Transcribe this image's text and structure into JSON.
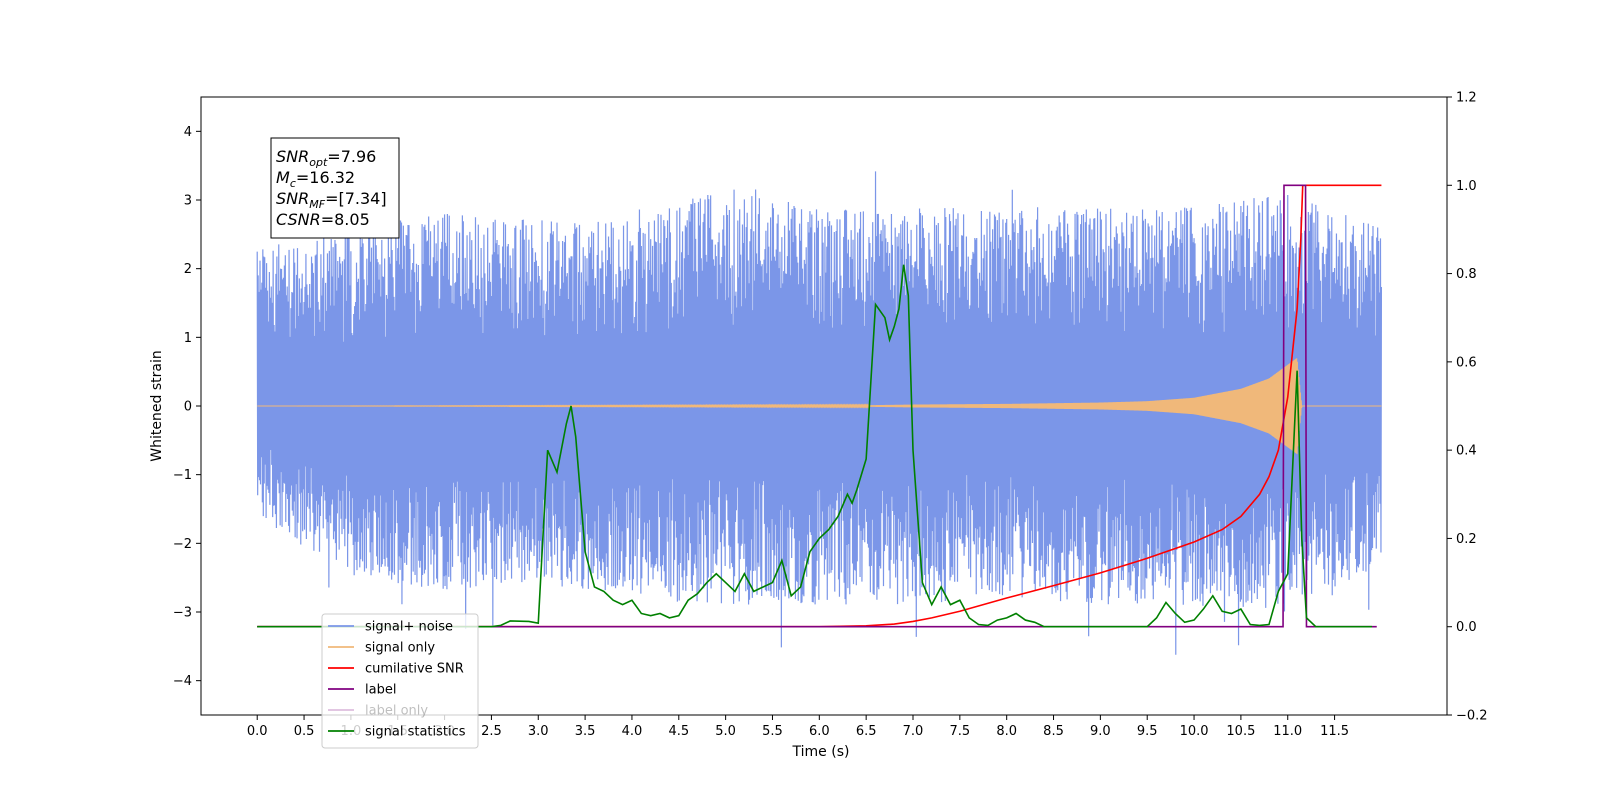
{
  "chart_data": {
    "type": "line",
    "xlabel": "Time (s)",
    "ylabel_left": "Whitened strain",
    "ylabel_right": "",
    "xlim": [
      -0.6,
      12.7
    ],
    "ylim_left": [
      -4.5,
      4.5
    ],
    "ylim_right": [
      -0.2,
      1.2
    ],
    "x_ticks": [
      0.0,
      0.5,
      1.0,
      1.5,
      2.0,
      2.5,
      3.0,
      3.5,
      4.0,
      4.5,
      5.0,
      5.5,
      6.0,
      6.5,
      7.0,
      7.5,
      8.0,
      8.5,
      9.0,
      9.5,
      10.0,
      10.5,
      11.0,
      11.5
    ],
    "x_tick_labels": [
      "0.0",
      "0.5",
      "1.0",
      "1.5",
      "2.0",
      "2.5",
      "3.0",
      "3.5",
      "4.0",
      "4.5",
      "5.0",
      "5.5",
      "6.0",
      "6.5",
      "7.0",
      "7.5",
      "8.0",
      "8.5",
      "9.0",
      "9.5",
      "10.0",
      "10.5",
      "11.0",
      "11.5"
    ],
    "y_left_ticks": [
      -4,
      -3,
      -2,
      -1,
      0,
      1,
      2,
      3,
      4
    ],
    "y_left_tick_labels": [
      "−4",
      "−3",
      "−2",
      "−1",
      "0",
      "1",
      "2",
      "3",
      "4"
    ],
    "y_right_ticks": [
      -0.2,
      0.0,
      0.2,
      0.4,
      0.6,
      0.8,
      1.0,
      1.2
    ],
    "y_right_tick_labels": [
      "−0.2",
      "0.0",
      "0.2",
      "0.4",
      "0.6",
      "0.8",
      "1.0",
      "1.2"
    ],
    "grid": false,
    "legend_position": "bottom-left",
    "annotation": {
      "lines": [
        {
          "sym": "SNR",
          "sub": "opt",
          "val": "=7.96"
        },
        {
          "sym": "M",
          "sub": "c",
          "val": "=16.32"
        },
        {
          "sym": "SNR",
          "sub": "MF",
          "val": "=[7.34]"
        },
        {
          "sym": "CSNR",
          "sub": "",
          "val": "=8.05"
        }
      ]
    },
    "noise": {
      "x_start": 0.0,
      "x_end": 12.0,
      "envelope_upper": [
        [
          0.0,
          2.3
        ],
        [
          1.0,
          2.6
        ],
        [
          2.0,
          2.8
        ],
        [
          3.0,
          2.7
        ],
        [
          4.0,
          2.7
        ],
        [
          5.0,
          3.2
        ],
        [
          6.0,
          2.9
        ],
        [
          7.0,
          2.9
        ],
        [
          8.0,
          2.9
        ],
        [
          9.0,
          2.9
        ],
        [
          10.0,
          2.9
        ],
        [
          11.0,
          3.1
        ],
        [
          12.0,
          2.6
        ]
      ],
      "envelope_lower": [
        [
          0.0,
          -1.6
        ],
        [
          1.0,
          -2.5
        ],
        [
          2.0,
          -2.7
        ],
        [
          3.0,
          -2.6
        ],
        [
          4.0,
          -2.8
        ],
        [
          5.0,
          -2.9
        ],
        [
          6.0,
          -2.9
        ],
        [
          7.0,
          -2.9
        ],
        [
          8.0,
          -2.8
        ],
        [
          9.0,
          -2.9
        ],
        [
          10.0,
          -2.9
        ],
        [
          11.0,
          -3.0
        ],
        [
          12.0,
          -2.3
        ]
      ]
    },
    "signal_envelope": [
      [
        0.0,
        0.0
      ],
      [
        6.5,
        0.01
      ],
      [
        7.0,
        0.02
      ],
      [
        8.0,
        0.03
      ],
      [
        9.0,
        0.05
      ],
      [
        9.5,
        0.07
      ],
      [
        10.0,
        0.12
      ],
      [
        10.5,
        0.25
      ],
      [
        10.8,
        0.4
      ],
      [
        11.0,
        0.6
      ],
      [
        11.1,
        0.7
      ],
      [
        11.15,
        0.0
      ],
      [
        12.0,
        0.0
      ]
    ],
    "series": [
      {
        "name": "signal+ noise",
        "color": "#7b96e8",
        "axis": "left",
        "x": [],
        "y": []
      },
      {
        "name": "signal only",
        "color": "#f0b87a",
        "axis": "left",
        "x": [],
        "y": []
      },
      {
        "name": "cumilative SNR",
        "color": "#ff0000",
        "axis": "right",
        "x": [
          0.0,
          6.0,
          6.5,
          6.8,
          7.0,
          7.2,
          7.5,
          8.0,
          8.5,
          9.0,
          9.5,
          10.0,
          10.3,
          10.5,
          10.7,
          10.8,
          10.9,
          11.0,
          11.1,
          11.14,
          11.16,
          11.2,
          12.0
        ],
        "y": [
          0.0,
          0.0,
          0.002,
          0.006,
          0.012,
          0.02,
          0.035,
          0.065,
          0.093,
          0.122,
          0.155,
          0.192,
          0.22,
          0.25,
          0.3,
          0.34,
          0.4,
          0.52,
          0.72,
          0.88,
          1.0,
          1.0,
          1.0
        ]
      },
      {
        "name": "label",
        "color": "#800080",
        "axis": "right",
        "x": [
          0.0,
          10.95,
          10.96,
          11.1,
          11.11,
          11.19,
          11.2,
          11.95
        ],
        "y": [
          0.0,
          0.0,
          1.0,
          1.0,
          1.0,
          1.0,
          0.0,
          0.0
        ]
      },
      {
        "name": "label only",
        "color": "#800080",
        "axis": "right",
        "hidden": true,
        "x": [],
        "y": []
      },
      {
        "name": "signal statistics",
        "color": "#008000",
        "axis": "right",
        "x": [
          0.0,
          2.5,
          2.6,
          2.7,
          2.9,
          3.0,
          3.1,
          3.2,
          3.3,
          3.35,
          3.4,
          3.45,
          3.5,
          3.6,
          3.7,
          3.8,
          3.9,
          4.0,
          4.1,
          4.2,
          4.3,
          4.4,
          4.5,
          4.6,
          4.7,
          4.8,
          4.9,
          5.0,
          5.1,
          5.2,
          5.3,
          5.4,
          5.5,
          5.6,
          5.7,
          5.8,
          5.9,
          6.0,
          6.1,
          6.2,
          6.3,
          6.35,
          6.4,
          6.5,
          6.6,
          6.7,
          6.75,
          6.8,
          6.85,
          6.9,
          6.95,
          7.0,
          7.1,
          7.2,
          7.3,
          7.4,
          7.5,
          7.6,
          7.7,
          7.8,
          7.9,
          8.0,
          8.1,
          8.2,
          8.3,
          8.4,
          8.5,
          8.6,
          8.7,
          8.8,
          8.9,
          9.0,
          9.5,
          9.6,
          9.7,
          9.8,
          9.9,
          10.0,
          10.1,
          10.2,
          10.3,
          10.4,
          10.5,
          10.6,
          10.7,
          10.8,
          10.9,
          11.0,
          11.05,
          11.1,
          11.15,
          11.2,
          11.3,
          11.4,
          11.5,
          11.9
        ],
        "y": [
          0.0,
          0.0,
          0.003,
          0.013,
          0.012,
          0.008,
          0.4,
          0.35,
          0.46,
          0.5,
          0.43,
          0.3,
          0.17,
          0.09,
          0.08,
          0.06,
          0.05,
          0.06,
          0.03,
          0.025,
          0.03,
          0.02,
          0.025,
          0.06,
          0.075,
          0.1,
          0.12,
          0.1,
          0.08,
          0.12,
          0.08,
          0.09,
          0.1,
          0.15,
          0.07,
          0.09,
          0.17,
          0.2,
          0.22,
          0.25,
          0.3,
          0.28,
          0.31,
          0.38,
          0.73,
          0.7,
          0.65,
          0.68,
          0.72,
          0.82,
          0.75,
          0.4,
          0.1,
          0.05,
          0.09,
          0.05,
          0.06,
          0.02,
          0.005,
          0.003,
          0.015,
          0.02,
          0.03,
          0.015,
          0.01,
          0.0,
          0.0,
          0.0,
          0.0,
          0.0,
          0.0,
          0.0,
          0.0,
          0.02,
          0.055,
          0.03,
          0.01,
          0.015,
          0.04,
          0.07,
          0.035,
          0.03,
          0.04,
          0.005,
          0.003,
          0.005,
          0.08,
          0.12,
          0.35,
          0.58,
          0.2,
          0.02,
          0.0,
          0.0,
          0.0,
          0.0
        ]
      }
    ]
  }
}
